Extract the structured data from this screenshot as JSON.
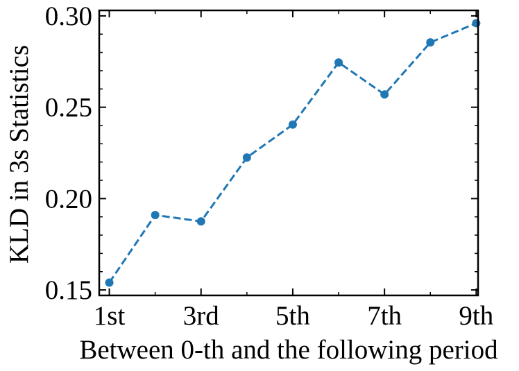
{
  "chart_data": {
    "type": "line",
    "title": "",
    "xlabel": "Between 0-th and the following period",
    "ylabel": "KLD in 3s Statistics",
    "categories": [
      "1st",
      "2nd",
      "3rd",
      "4th",
      "5th",
      "6th",
      "7th",
      "8th",
      "9th"
    ],
    "x_tick_labels": [
      "1st",
      "3rd",
      "5th",
      "7th",
      "9th"
    ],
    "x_tick_positions": [
      1,
      3,
      5,
      7,
      9
    ],
    "xlim": [
      0.78,
      9.04
    ],
    "ylim": [
      0.147,
      0.303
    ],
    "y_ticks": [
      0.15,
      0.2,
      0.25,
      0.3
    ],
    "y_tick_labels": [
      "0.15",
      "0.20",
      "0.25",
      "0.30"
    ],
    "y_minor_step": 0.01,
    "series": [
      {
        "x": [
          1,
          2,
          3,
          4,
          5,
          6,
          7,
          8,
          9
        ],
        "values": [
          0.154,
          0.191,
          0.1875,
          0.2225,
          0.2405,
          0.2745,
          0.257,
          0.2855,
          0.296
        ],
        "color": "#1f77b4",
        "line_style": "dashed",
        "marker": "circle"
      }
    ],
    "grid": false
  }
}
